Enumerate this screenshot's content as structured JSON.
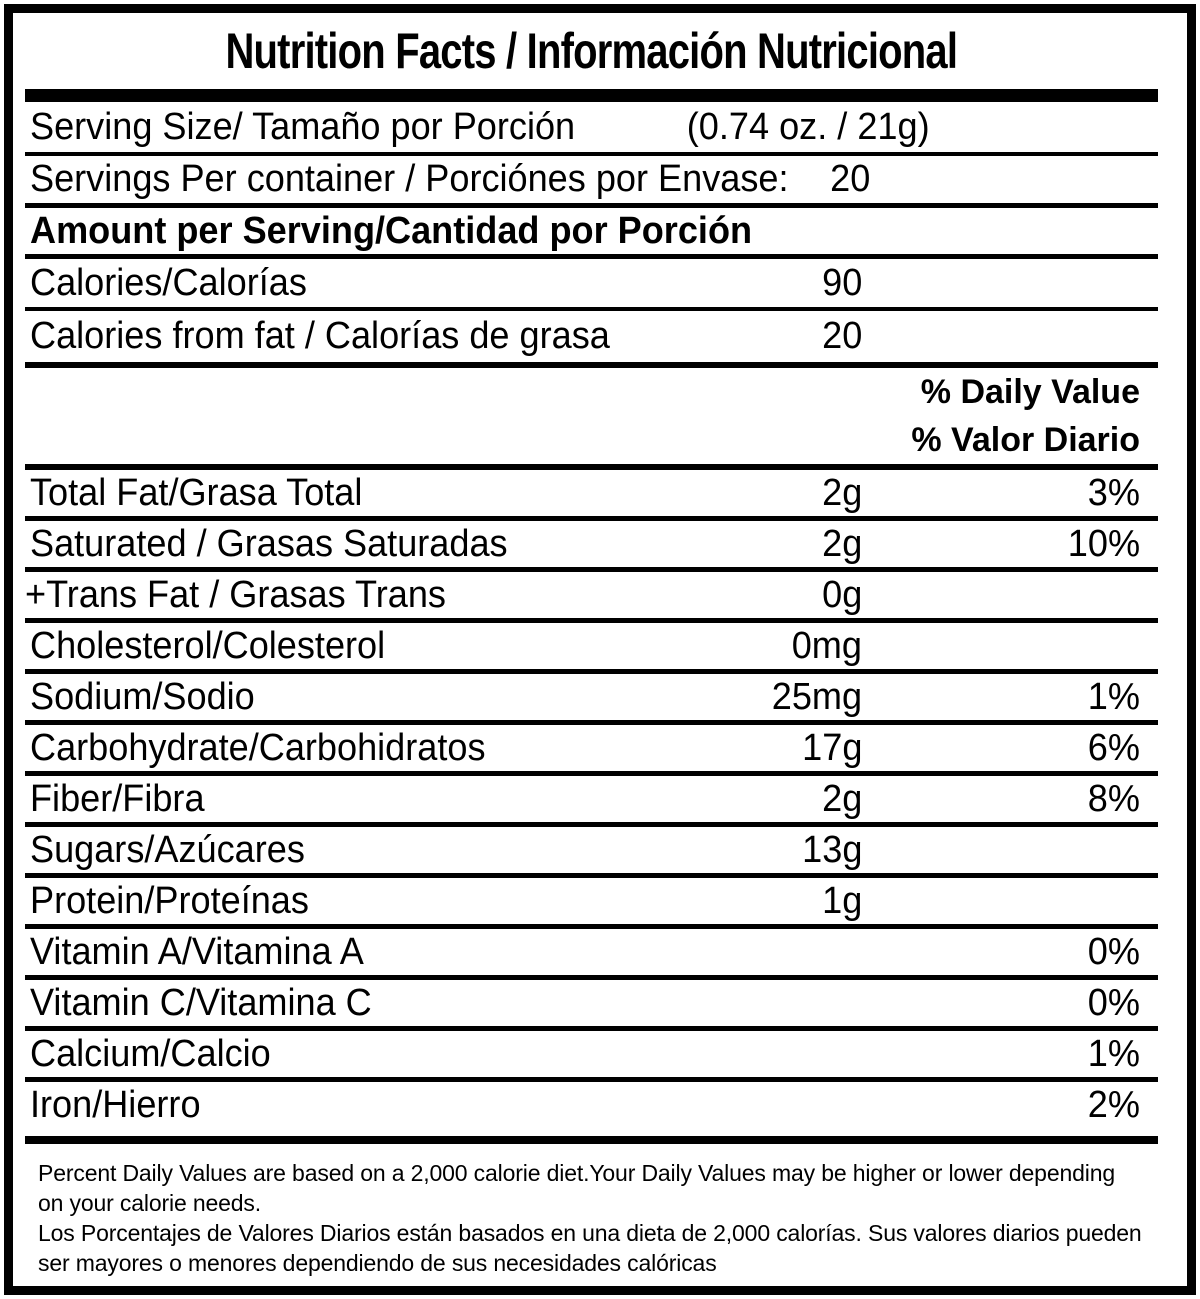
{
  "title": "Nutrition Facts / Información Nutricional",
  "serving_size": {
    "label": "Serving Size/ Tamaño por Porción",
    "value": "(0.74 oz. / 21g)"
  },
  "servings_per_container": {
    "label": "Servings Per container / Porciónes por Envase:",
    "value": "20"
  },
  "amount_per_serving_header": "Amount per Serving/Cantidad por Porción",
  "calories": {
    "label": "Calories/Calorías",
    "value": "90"
  },
  "calories_from_fat": {
    "label": "Calories from fat / Calorías de grasa",
    "value": "20"
  },
  "daily_value_header": {
    "en": "% Daily Value",
    "es": "% Valor Diario"
  },
  "nutrients": [
    {
      "label": "Total Fat/Grasa Total",
      "amount": "2g",
      "percent": "3%"
    },
    {
      "label": "Saturated / Grasas Saturadas",
      "amount": "2g",
      "percent": "10%"
    },
    {
      "label": "+Trans Fat / Grasas Trans",
      "amount": "0g",
      "percent": ""
    },
    {
      "label": "Cholesterol/Colesterol",
      "amount": "0mg",
      "percent": ""
    },
    {
      "label": "Sodium/Sodio",
      "amount": "25mg",
      "percent": "1%"
    },
    {
      "label": "Carbohydrate/Carbohidratos",
      "amount": "17g",
      "percent": "6%"
    },
    {
      "label": "Fiber/Fibra",
      "amount": "2g",
      "percent": "8%"
    },
    {
      "label": "Sugars/Azúcares",
      "amount": "13g",
      "percent": ""
    },
    {
      "label": "Protein/Proteínas",
      "amount": "1g",
      "percent": ""
    },
    {
      "label": "Vitamin A/Vitamina A",
      "amount": "",
      "percent": "0%"
    },
    {
      "label": "Vitamin C/Vitamina C",
      "amount": "",
      "percent": "0%"
    },
    {
      "label": "Calcium/Calcio",
      "amount": "",
      "percent": "1%"
    },
    {
      "label": "Iron/Hierro",
      "amount": "",
      "percent": "2%"
    }
  ],
  "footnotes": {
    "en": "Percent Daily Values are based on a 2,000 calorie diet.Your Daily Values may be higher or lower depending on your calorie needs.",
    "es": "Los Porcentajes de Valores Diarios están basados en una dieta de 2,000 calorías. Sus valores diarios pueden ser mayores o menores dependiendo de sus necesidades calóricas"
  },
  "colors": {
    "text": "#000000",
    "background": "#ffffff",
    "border": "#000000"
  }
}
